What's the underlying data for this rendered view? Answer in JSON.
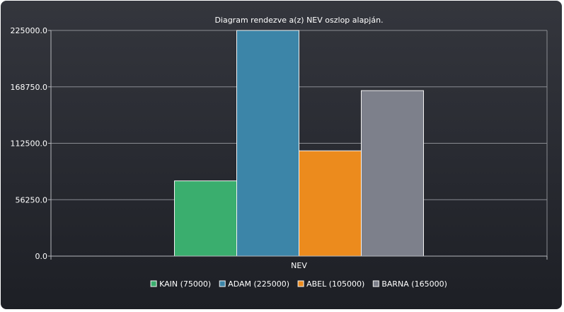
{
  "chart_data": {
    "type": "bar",
    "title": "Diagram rendezve a(z) NEV oszlop alapján.",
    "categories": [
      "NEV"
    ],
    "xlabel": "NEV",
    "ylabel": "",
    "ylim": [
      0,
      225000
    ],
    "yticks": [
      "0.0",
      "56250.0",
      "112500.0",
      "168750.0",
      "225000.0"
    ],
    "grid": true,
    "legend_position": "bottom",
    "series": [
      {
        "name": "KAIN (75000)",
        "values": [
          75000
        ],
        "color": "#3aae6e"
      },
      {
        "name": "ADAM (225000)",
        "values": [
          225000
        ],
        "color": "#3c85a8"
      },
      {
        "name": "ABEL (105000)",
        "values": [
          105000
        ],
        "color": "#ec8b1d"
      },
      {
        "name": "BARNA (165000)",
        "values": [
          165000
        ],
        "color": "#7d808b"
      }
    ]
  }
}
